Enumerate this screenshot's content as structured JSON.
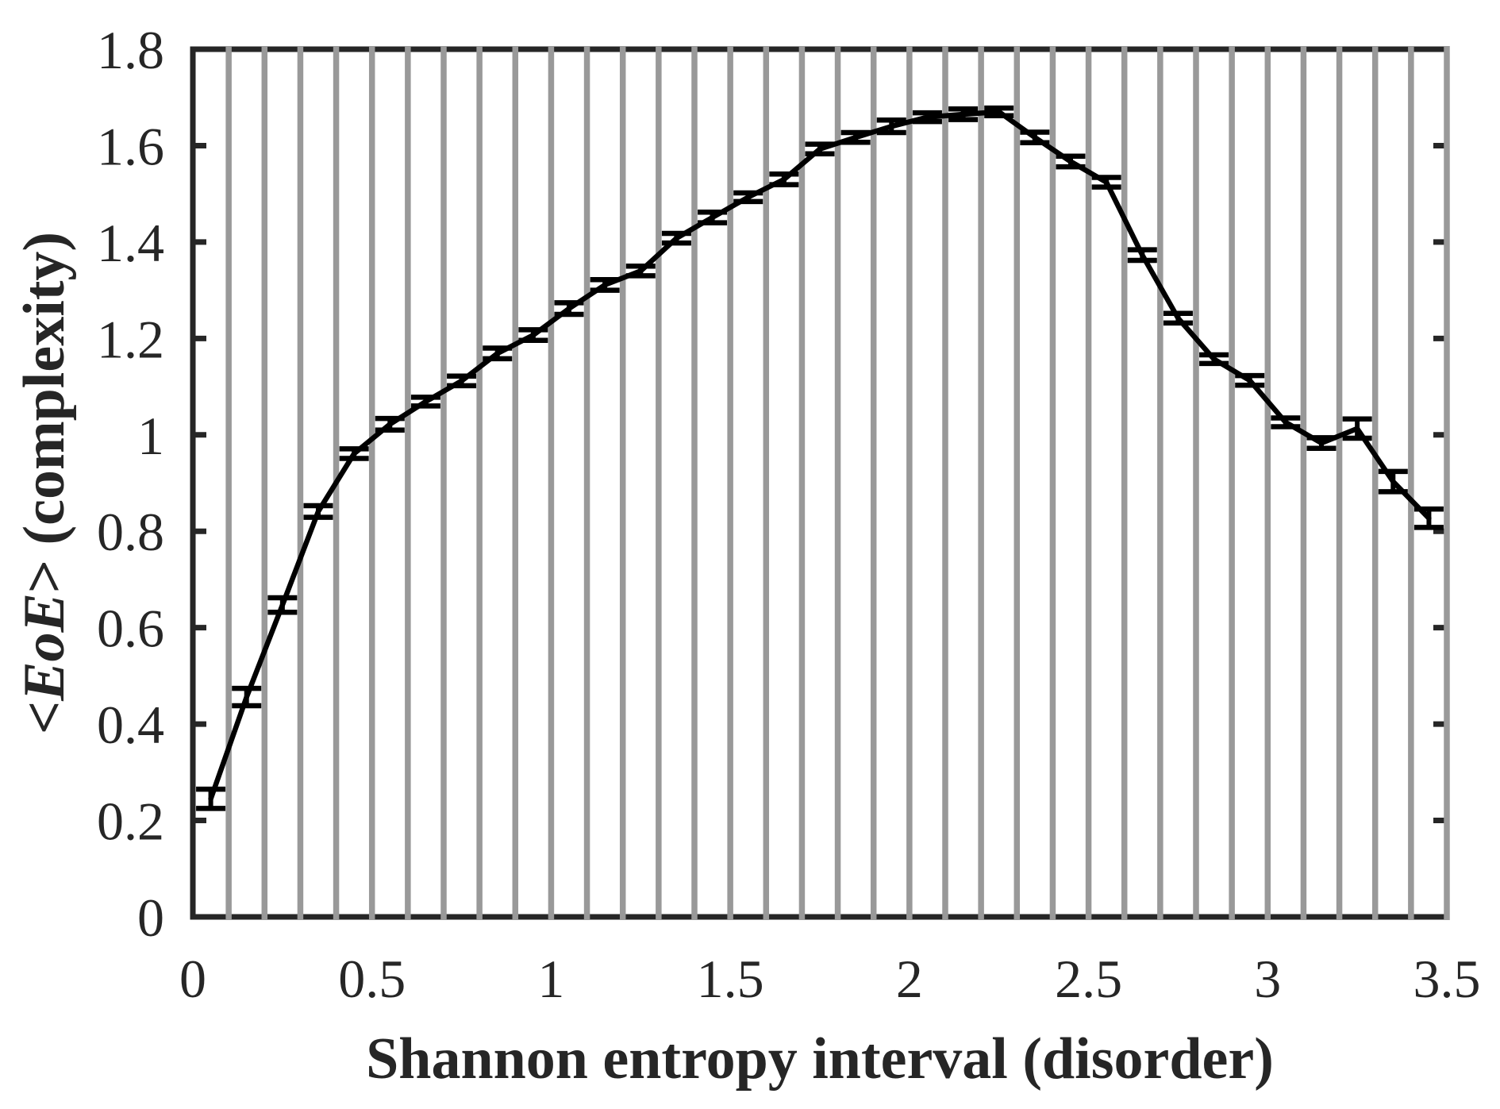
{
  "chart_data": {
    "type": "line",
    "subtype": "line_with_error_bars",
    "title": "",
    "xlabel": "Shannon entropy interval (disorder)",
    "ylabel": {
      "prefix": "<",
      "italic": "EoE",
      "suffix": ">",
      "rest": " (complexity)",
      "full": "<EoE> (complexity)"
    },
    "xlim": [
      0,
      3.5
    ],
    "ylim": [
      0,
      1.8
    ],
    "x_ticks": [
      0,
      0.5,
      1,
      1.5,
      2,
      2.5,
      3,
      3.5
    ],
    "x_tick_labels": [
      "0",
      "0.5",
      "1",
      "1.5",
      "2",
      "2.5",
      "3",
      "3.5"
    ],
    "y_ticks": [
      0,
      0.2,
      0.4,
      0.6,
      0.8,
      1.0,
      1.2,
      1.4,
      1.6,
      1.8
    ],
    "y_tick_labels": [
      "0",
      "0.2",
      "0.4",
      "0.6",
      "0.8",
      "1",
      "1.2",
      "1.4",
      "1.6",
      "1.8"
    ],
    "grid": {
      "vertical": true,
      "horizontal": false,
      "spacing": 0.1
    },
    "legend": null,
    "series": [
      {
        "name": "<EoE>",
        "color": "#000000",
        "x": [
          0.05,
          0.15,
          0.25,
          0.35,
          0.45,
          0.55,
          0.65,
          0.75,
          0.85,
          0.95,
          1.05,
          1.15,
          1.25,
          1.35,
          1.45,
          1.55,
          1.65,
          1.75,
          1.85,
          1.95,
          2.05,
          2.15,
          2.25,
          2.35,
          2.45,
          2.55,
          2.65,
          2.75,
          2.85,
          2.95,
          3.05,
          3.15,
          3.25,
          3.35,
          3.45
        ],
        "values": [
          0.245,
          0.456,
          0.647,
          0.841,
          0.961,
          1.022,
          1.069,
          1.112,
          1.169,
          1.207,
          1.262,
          1.311,
          1.34,
          1.408,
          1.451,
          1.493,
          1.53,
          1.593,
          1.617,
          1.64,
          1.659,
          1.665,
          1.67,
          1.617,
          1.567,
          1.524,
          1.373,
          1.242,
          1.157,
          1.113,
          1.026,
          0.983,
          1.013,
          0.903,
          0.827
        ],
        "errors": [
          0.02,
          0.018,
          0.015,
          0.012,
          0.01,
          0.012,
          0.009,
          0.01,
          0.011,
          0.011,
          0.012,
          0.011,
          0.01,
          0.01,
          0.011,
          0.009,
          0.011,
          0.01,
          0.01,
          0.013,
          0.009,
          0.011,
          0.008,
          0.011,
          0.011,
          0.01,
          0.011,
          0.01,
          0.009,
          0.01,
          0.009,
          0.011,
          0.02,
          0.021,
          0.019
        ]
      }
    ]
  },
  "style": {
    "axis_color": "#262626",
    "grid_color": "#999999",
    "line_color": "#000000",
    "background": "#ffffff"
  }
}
